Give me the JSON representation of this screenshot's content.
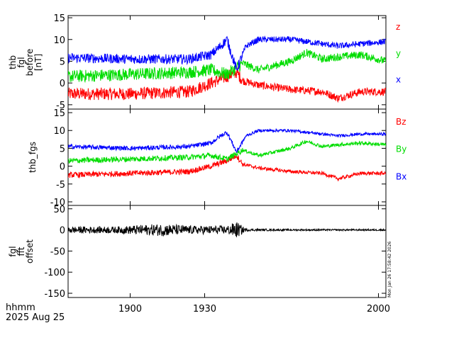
{
  "footer": {
    "time_label": "hhmm",
    "date_label": "2025 Aug 25",
    "timestamp": "Mon Jan 26 17:58:42 2026"
  },
  "x_axis": {
    "unit": "hhmm",
    "ticks": [
      {
        "value": 1900,
        "label": "1900"
      },
      {
        "value": 1930,
        "label": "1930"
      },
      {
        "value": 2000,
        "label": "2000"
      }
    ]
  },
  "colors": {
    "x": "#0000ff",
    "y": "#00dd00",
    "z": "#ff0000",
    "black": "#000000"
  },
  "chart_data": [
    {
      "type": "line",
      "ylabel_lines": [
        "thb",
        "fgl",
        "before",
        "[nT]"
      ],
      "ylim": [
        -6,
        15.5
      ],
      "y_ticks": [
        -5,
        0,
        5,
        10,
        15
      ],
      "legend": [
        "z",
        "y",
        "x"
      ],
      "legend_colors": [
        "#ff0000",
        "#00dd00",
        "#0000ff"
      ],
      "legend_placement": "right",
      "series": [
        {
          "name": "z",
          "color": "#ff0000",
          "points": [
            [
              0,
              -2.5
            ],
            [
              0.2,
              -2.5
            ],
            [
              0.38,
              -2.0
            ],
            [
              0.45,
              0.0
            ],
            [
              0.5,
              1.5
            ],
            [
              0.53,
              2.5
            ],
            [
              0.55,
              0.5
            ],
            [
              0.6,
              -0.5
            ],
            [
              0.7,
              -1.5
            ],
            [
              0.8,
              -2.0
            ],
            [
              0.85,
              -3.5
            ],
            [
              0.92,
              -2.0
            ],
            [
              1,
              -2.0
            ]
          ],
          "noise": 0.9
        },
        {
          "name": "y",
          "color": "#00dd00",
          "points": [
            [
              0,
              1.5
            ],
            [
              0.2,
              2.0
            ],
            [
              0.38,
              2.5
            ],
            [
              0.45,
              3.0
            ],
            [
              0.5,
              2.0
            ],
            [
              0.55,
              4.5
            ],
            [
              0.6,
              3.0
            ],
            [
              0.7,
              5.0
            ],
            [
              0.75,
              7.0
            ],
            [
              0.8,
              5.5
            ],
            [
              0.85,
              6.0
            ],
            [
              0.92,
              6.5
            ],
            [
              1,
              5.0
            ]
          ],
          "noise": 0.9
        },
        {
          "name": "x",
          "color": "#0000ff",
          "points": [
            [
              0,
              5.8
            ],
            [
              0.2,
              5.5
            ],
            [
              0.38,
              5.5
            ],
            [
              0.45,
              6.5
            ],
            [
              0.48,
              8.5
            ],
            [
              0.5,
              10.0
            ],
            [
              0.53,
              3.0
            ],
            [
              0.56,
              8.5
            ],
            [
              0.6,
              10.0
            ],
            [
              0.7,
              10.0
            ],
            [
              0.8,
              9.0
            ],
            [
              0.85,
              8.5
            ],
            [
              0.92,
              9.0
            ],
            [
              1,
              9.5
            ]
          ],
          "noise": 0.7
        }
      ]
    },
    {
      "type": "line",
      "ylabel_lines": [
        "thb_fgs"
      ],
      "ylim": [
        -11,
        16
      ],
      "y_ticks": [
        -10,
        -5,
        0,
        5,
        10,
        15
      ],
      "legend": [
        "Bz",
        "By",
        "Bx"
      ],
      "legend_colors": [
        "#ff0000",
        "#00dd00",
        "#0000ff"
      ],
      "legend_placement": "right",
      "series": [
        {
          "name": "Bz",
          "color": "#ff0000",
          "points": [
            [
              0,
              -2.5
            ],
            [
              0.2,
              -2.0
            ],
            [
              0.38,
              -1.5
            ],
            [
              0.45,
              0.0
            ],
            [
              0.5,
              1.5
            ],
            [
              0.53,
              3.0
            ],
            [
              0.55,
              0.5
            ],
            [
              0.6,
              -0.5
            ],
            [
              0.7,
              -1.5
            ],
            [
              0.8,
              -2.0
            ],
            [
              0.85,
              -3.5
            ],
            [
              0.92,
              -2.0
            ],
            [
              1,
              -2.0
            ]
          ],
          "noise": 0.5
        },
        {
          "name": "By",
          "color": "#00dd00",
          "points": [
            [
              0,
              1.5
            ],
            [
              0.2,
              2.0
            ],
            [
              0.38,
              2.5
            ],
            [
              0.45,
              3.0
            ],
            [
              0.5,
              2.0
            ],
            [
              0.55,
              4.5
            ],
            [
              0.6,
              3.0
            ],
            [
              0.7,
              5.0
            ],
            [
              0.75,
              7.0
            ],
            [
              0.8,
              5.5
            ],
            [
              0.85,
              6.0
            ],
            [
              0.92,
              6.5
            ],
            [
              1,
              6.0
            ]
          ],
          "noise": 0.5
        },
        {
          "name": "Bx",
          "color": "#0000ff",
          "points": [
            [
              0,
              5.5
            ],
            [
              0.2,
              5.0
            ],
            [
              0.38,
              5.5
            ],
            [
              0.45,
              6.5
            ],
            [
              0.48,
              8.5
            ],
            [
              0.5,
              9.5
            ],
            [
              0.53,
              4.0
            ],
            [
              0.56,
              8.5
            ],
            [
              0.6,
              10.0
            ],
            [
              0.7,
              10.0
            ],
            [
              0.8,
              9.0
            ],
            [
              0.85,
              8.5
            ],
            [
              0.92,
              9.0
            ],
            [
              1,
              9.0
            ]
          ],
          "noise": 0.4
        }
      ]
    },
    {
      "type": "line",
      "ylabel_lines": [
        "fgl",
        "fft",
        "offset"
      ],
      "ylim": [
        -160,
        58
      ],
      "y_ticks": [
        -150,
        -100,
        -50,
        0,
        50
      ],
      "legend": [],
      "series": [
        {
          "color": "#000000",
          "points": [
            [
              0,
              0
            ],
            [
              0.38,
              0
            ],
            [
              0.5,
              0
            ],
            [
              0.55,
              0
            ],
            [
              1,
              0
            ]
          ],
          "noise_profile": [
            [
              0,
              8
            ],
            [
              0.15,
              8
            ],
            [
              0.3,
              15
            ],
            [
              0.38,
              10
            ],
            [
              0.5,
              10
            ],
            [
              0.53,
              20
            ],
            [
              0.56,
              3
            ],
            [
              0.7,
              2
            ],
            [
              1,
              2
            ]
          ]
        }
      ]
    }
  ]
}
